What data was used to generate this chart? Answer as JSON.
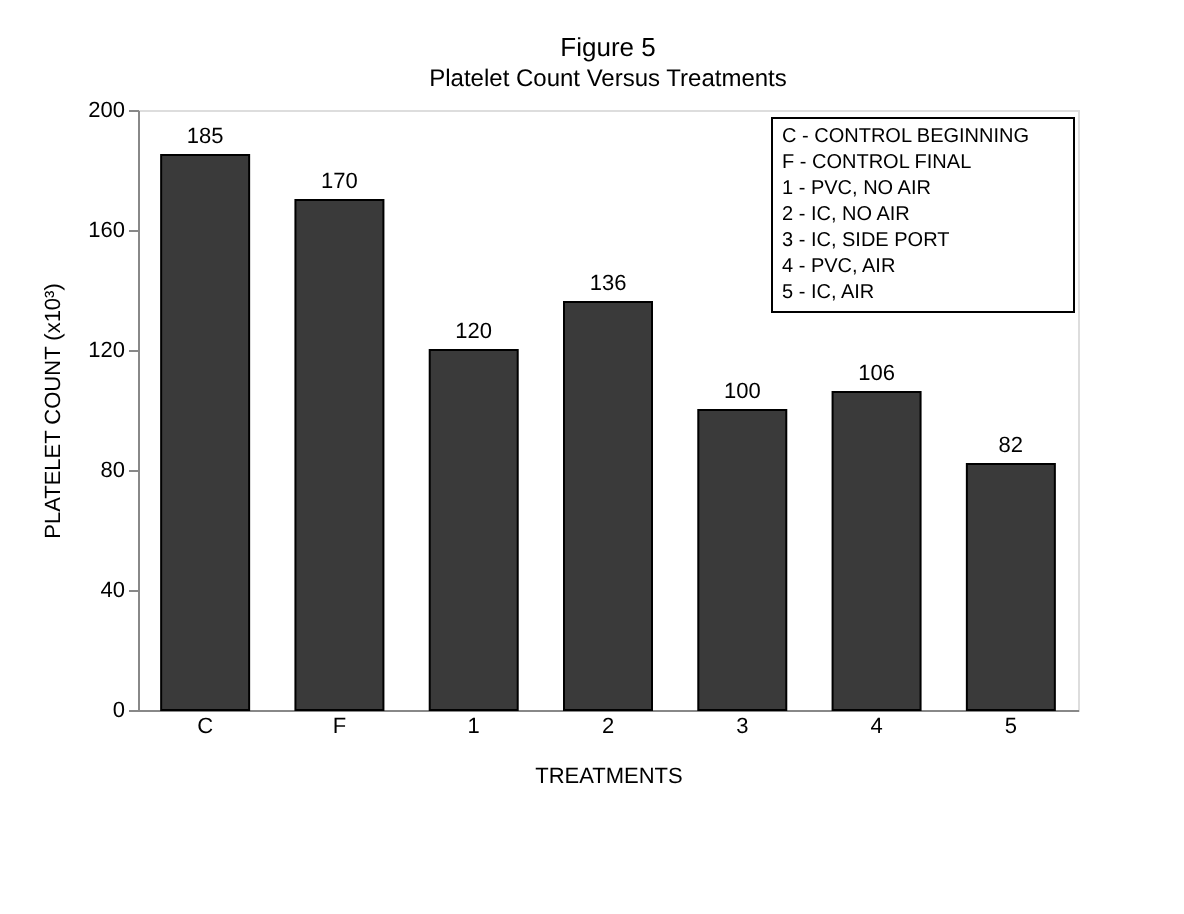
{
  "chart_data": {
    "type": "bar",
    "title": "Figure 5",
    "subtitle": "Platelet Count Versus Treatments",
    "xlabel": "TREATMENTS",
    "ylabel": "PLATELET COUNT (x10³)",
    "categories": [
      "C",
      "F",
      "1",
      "2",
      "3",
      "4",
      "5"
    ],
    "values": [
      185,
      170,
      120,
      136,
      100,
      106,
      82
    ],
    "color": "#3a3a3a",
    "ylim": [
      0,
      200
    ],
    "yticks": [
      0,
      40,
      80,
      120,
      160,
      200
    ],
    "grid": false,
    "data_labels": true,
    "annotations": [
      "C - CONTROL BEGINNING",
      "F - CONTROL FINAL",
      "1 - PVC, NO AIR",
      "2 - IC, NO AIR",
      "3 - IC, SIDE PORT",
      "4 - PVC, AIR",
      "5 - IC, AIR"
    ]
  }
}
